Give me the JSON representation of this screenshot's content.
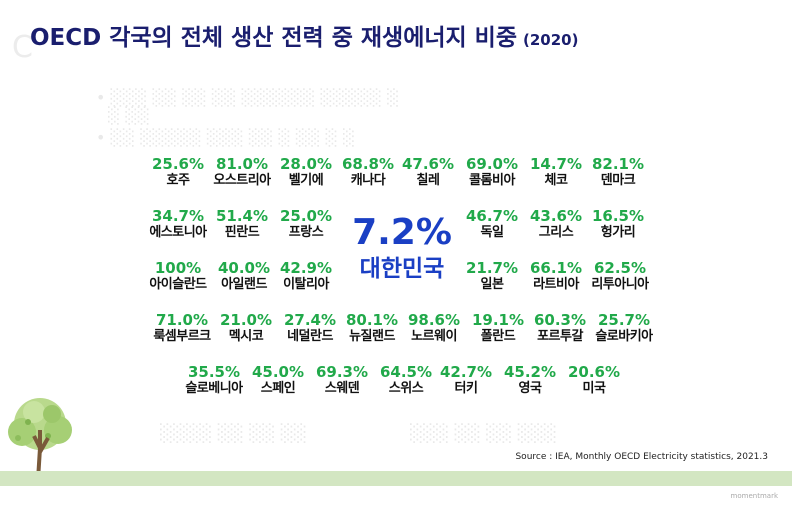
{
  "title": "OECD 각국의 전체 생산 전력 중 재생에너지 비중",
  "year": "(2020)",
  "korea": {
    "value": "7.2%",
    "name": "대한민국"
  },
  "countries": [
    {
      "value": "25.6%",
      "name": "호주"
    },
    {
      "value": "81.0%",
      "name": "오스트리아"
    },
    {
      "value": "28.0%",
      "name": "벨기에"
    },
    {
      "value": "68.8%",
      "name": "캐나다"
    },
    {
      "value": "47.6%",
      "name": "칠레"
    },
    {
      "value": "69.0%",
      "name": "콜롬비아"
    },
    {
      "value": "14.7%",
      "name": "체코"
    },
    {
      "value": "82.1%",
      "name": "덴마크"
    },
    {
      "value": "34.7%",
      "name": "에스토니아"
    },
    {
      "value": "51.4%",
      "name": "핀란드"
    },
    {
      "value": "25.0%",
      "name": "프랑스"
    },
    {
      "value": "46.7%",
      "name": "독일"
    },
    {
      "value": "43.6%",
      "name": "그리스"
    },
    {
      "value": "16.5%",
      "name": "헝가리"
    },
    {
      "value": "100%",
      "name": "아이슬란드"
    },
    {
      "value": "40.0%",
      "name": "아일랜드"
    },
    {
      "value": "42.9%",
      "name": "이탈리아"
    },
    {
      "value": "21.7%",
      "name": "일본"
    },
    {
      "value": "66.1%",
      "name": "라트비아"
    },
    {
      "value": "62.5%",
      "name": "리투아니아"
    },
    {
      "value": "71.0%",
      "name": "룩셈부르크"
    },
    {
      "value": "21.0%",
      "name": "멕시코"
    },
    {
      "value": "27.4%",
      "name": "네덜란드"
    },
    {
      "value": "80.1%",
      "name": "뉴질랜드"
    },
    {
      "value": "98.6%",
      "name": "노르웨이"
    },
    {
      "value": "19.1%",
      "name": "폴란드"
    },
    {
      "value": "60.3%",
      "name": "포르투갈"
    },
    {
      "value": "25.7%",
      "name": "슬로바키아"
    },
    {
      "value": "35.5%",
      "name": "슬로베니아"
    },
    {
      "value": "45.0%",
      "name": "스페인"
    },
    {
      "value": "69.3%",
      "name": "스웨덴"
    },
    {
      "value": "64.5%",
      "name": "스위스"
    },
    {
      "value": "42.7%",
      "name": "터키"
    },
    {
      "value": "45.2%",
      "name": "영국"
    },
    {
      "value": "20.6%",
      "name": "미국"
    }
  ],
  "source": "Source : IEA, Monthly OECD Electricity statistics, 2021.3",
  "footer_logo": "momentmark",
  "colors": {
    "title": "#1a1e6e",
    "percent": "#21a94a",
    "korea": "#1a3fc4",
    "footer_bar": "#d3e6c2"
  }
}
